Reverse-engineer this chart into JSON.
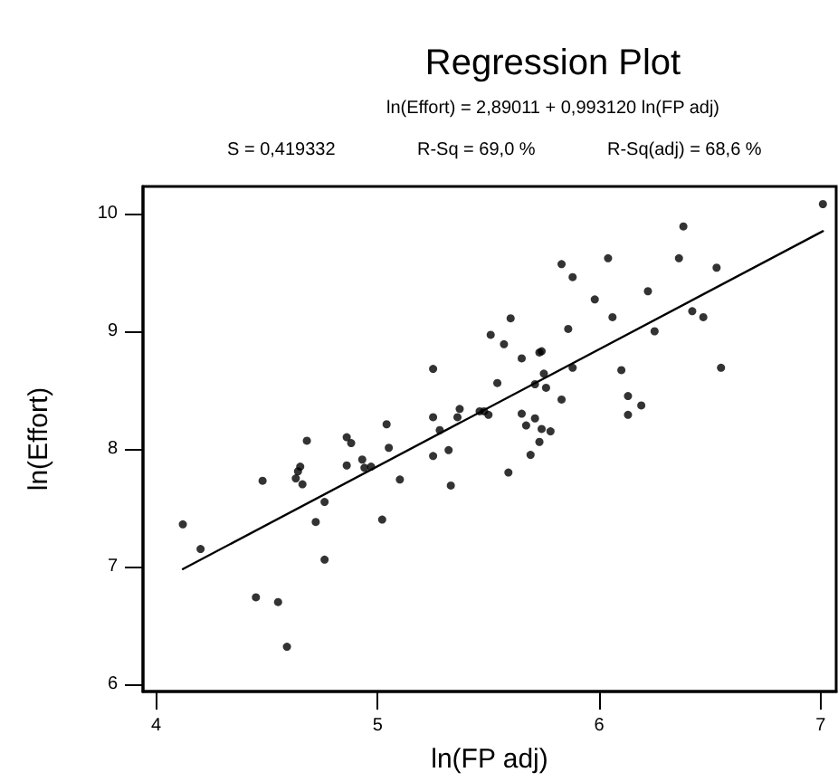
{
  "chart_data": {
    "type": "scatter",
    "title": "Regression Plot",
    "subtitle": "ln(Effort) = 2,89011 + 0,993120 ln(FP adj)",
    "annotations": [
      "S = 0,419332",
      "R-Sq = 69,0 %",
      "R-Sq(adj) = 68,6 %"
    ],
    "xlabel": "ln(FP adj)",
    "ylabel": "ln(Effort)",
    "xlim": [
      3.94,
      7.07
    ],
    "xticks": [
      4,
      5,
      6,
      7
    ],
    "ylim": [
      5.94,
      10.23
    ],
    "yticks": [
      6,
      7,
      8,
      9,
      10
    ],
    "grid": false,
    "marker": "circle",
    "series": [
      {
        "color": "#000000",
        "x": [
          4.48,
          4.68,
          4.86,
          4.88,
          5.04,
          5.05,
          4.86,
          4.93,
          4.94,
          4.97,
          4.65,
          4.64,
          4.63,
          4.66,
          5.1,
          5.25,
          5.25,
          5.28,
          5.25,
          5.32,
          5.33,
          4.12,
          4.2,
          4.76,
          4.72,
          4.76,
          4.45,
          4.55,
          4.59,
          5.02,
          7.01,
          6.38,
          6.36,
          6.53,
          6.04,
          5.83,
          5.88,
          6.22,
          5.98,
          6.42,
          6.47,
          6.06,
          5.6,
          5.51,
          5.57,
          5.86,
          6.25,
          5.74,
          5.73,
          5.65,
          5.88,
          6.1,
          6.55,
          5.75,
          5.54,
          5.71,
          5.76,
          5.83,
          6.13,
          6.19,
          6.13,
          5.65,
          5.71,
          5.67,
          5.74,
          5.78,
          5.73,
          5.69,
          5.59,
          5.48,
          5.5,
          5.46,
          5.37,
          5.36
        ],
        "values": [
          7.73,
          8.07,
          8.1,
          8.05,
          8.21,
          8.01,
          7.86,
          7.91,
          7.84,
          7.85,
          7.85,
          7.81,
          7.75,
          7.7,
          7.74,
          8.68,
          8.27,
          8.16,
          7.94,
          7.99,
          7.69,
          7.36,
          7.15,
          7.55,
          7.38,
          7.06,
          6.74,
          6.7,
          6.32,
          7.4,
          10.08,
          9.89,
          9.62,
          9.54,
          9.62,
          9.57,
          9.46,
          9.34,
          9.27,
          9.17,
          9.12,
          9.12,
          9.11,
          8.97,
          8.89,
          9.02,
          9.0,
          8.83,
          8.82,
          8.77,
          8.69,
          8.67,
          8.69,
          8.64,
          8.56,
          8.55,
          8.52,
          8.42,
          8.45,
          8.37,
          8.29,
          8.3,
          8.26,
          8.2,
          8.17,
          8.15,
          8.06,
          7.95,
          7.8,
          8.32,
          8.29,
          8.32,
          8.34,
          8.27
        ]
      },
      {
        "type": "line",
        "color": "#000000",
        "marker": "none",
        "line_style": "solid",
        "x": [
          4.12,
          7.01
        ],
        "values": [
          6.98,
          9.85
        ]
      }
    ]
  }
}
